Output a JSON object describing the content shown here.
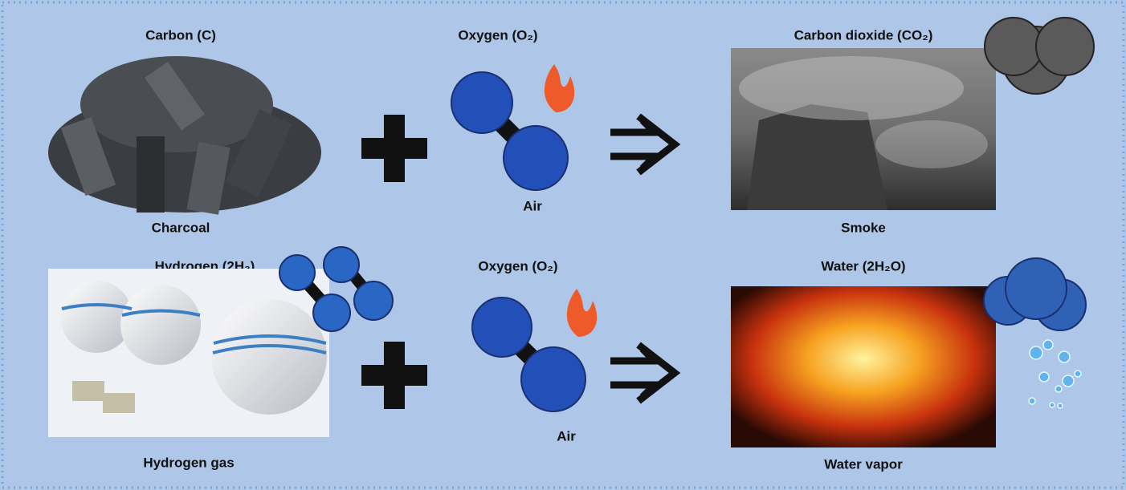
{
  "rows": [
    {
      "reactant": {
        "label": "Carbon (C)",
        "caption": "Charcoal"
      },
      "oxidizer": {
        "label": "Oxygen (O₂)",
        "caption": "Air"
      },
      "product": {
        "label": "Carbon dioxide (CO₂)",
        "caption": "Smoke"
      }
    },
    {
      "reactant": {
        "label": "Hydrogen (2H₂)",
        "caption": "Hydrogen gas"
      },
      "oxidizer": {
        "label": "Oxygen (O₂)",
        "caption": "Air"
      },
      "product": {
        "label": "Water (2H₂O)",
        "caption": "Water vapor"
      }
    }
  ]
}
